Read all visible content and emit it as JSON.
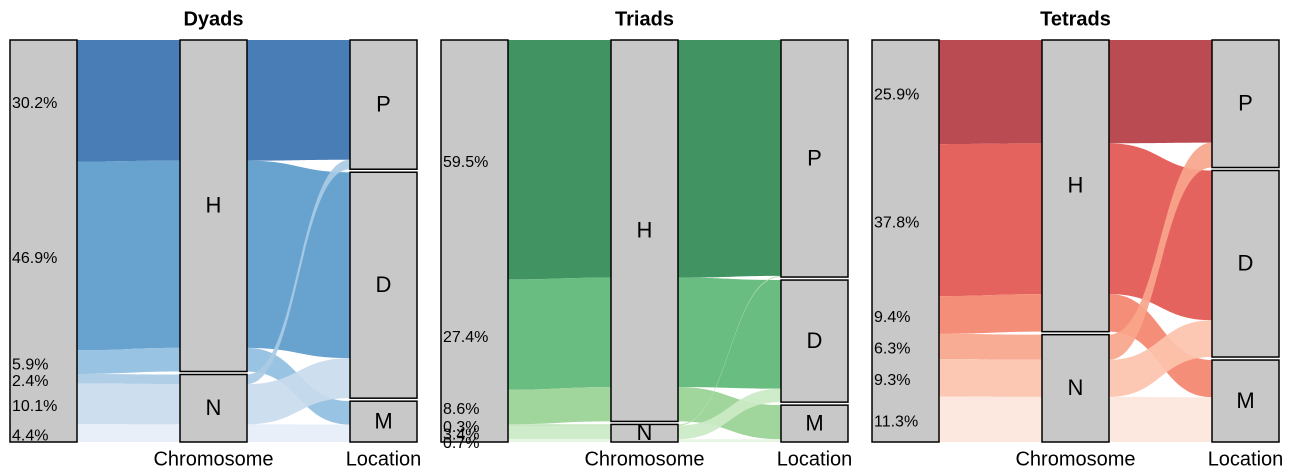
{
  "chart_data": [
    {
      "type": "alluvial",
      "title": "Dyads",
      "axes": [
        "Chromosome",
        "Location"
      ],
      "strata": [
        [
          "H",
          "N"
        ],
        [
          "P",
          "D",
          "M"
        ]
      ],
      "from": [
        "H",
        "H",
        "H",
        "N",
        "N",
        "N"
      ],
      "to": [
        "P",
        "D",
        "M",
        "P",
        "D",
        "M"
      ],
      "values": [
        30.2,
        46.9,
        5.9,
        2.4,
        10.1,
        4.4
      ],
      "value_labels": [
        "30.2%",
        "46.9%",
        "5.9%",
        "2.4%",
        "10.1%",
        "4.4%"
      ],
      "colors": [
        "#3a72b0",
        "#5b9bcb",
        "#8fbee0",
        "#a9cbe5",
        "#c9dbee",
        "#e6eef8"
      ]
    },
    {
      "type": "alluvial",
      "title": "Triads",
      "axes": [
        "Chromosome",
        "Location"
      ],
      "strata": [
        [
          "H",
          "N"
        ],
        [
          "P",
          "D",
          "M"
        ]
      ],
      "from": [
        "H",
        "H",
        "H",
        "N",
        "N",
        "N"
      ],
      "to": [
        "P",
        "D",
        "M",
        "P",
        "D",
        "M"
      ],
      "values": [
        59.5,
        27.4,
        8.6,
        0.3,
        3.4,
        0.7
      ],
      "value_labels": [
        "59.5%",
        "27.4%",
        "8.6%",
        "0.3%",
        "3.4%",
        "0.7%"
      ],
      "colors": [
        "#318a55",
        "#5cb775",
        "#98d194",
        "#b8e0b0",
        "#cbeac5",
        "#e5f4e1"
      ]
    },
    {
      "type": "alluvial",
      "title": "Tetrads",
      "axes": [
        "Chromosome",
        "Location"
      ],
      "strata": [
        [
          "H",
          "N"
        ],
        [
          "P",
          "D",
          "M"
        ]
      ],
      "from": [
        "H",
        "H",
        "H",
        "N",
        "N",
        "N"
      ],
      "to": [
        "P",
        "D",
        "M",
        "P",
        "D",
        "M"
      ],
      "values": [
        25.9,
        37.8,
        9.4,
        6.3,
        9.3,
        11.3
      ],
      "value_labels": [
        "25.9%",
        "37.8%",
        "9.4%",
        "6.3%",
        "9.3%",
        "11.3%"
      ],
      "colors": [
        "#b53c43",
        "#e35650",
        "#f4846c",
        "#f9a58b",
        "#fcc3ad",
        "#fde6dc"
      ]
    }
  ]
}
